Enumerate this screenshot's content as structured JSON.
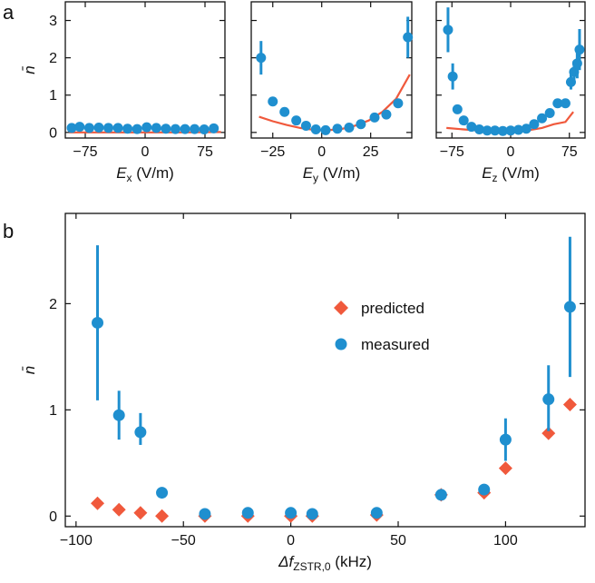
{
  "panel_letters": {
    "a": "a",
    "b": "b"
  },
  "colors": {
    "measured": "#1f8fcf",
    "predicted": "#f0593c",
    "axes": "#111111"
  },
  "chart_data": [
    {
      "id": "Ex",
      "type": "scatter",
      "xlabel_main": "E",
      "xlabel_sub": "x",
      "xlabel_unit": " (V/m)",
      "ylabel": "n̄",
      "xlim": [
        -100,
        100
      ],
      "ylim": [
        -0.15,
        3.5
      ],
      "xticks": [
        -75,
        0,
        75
      ],
      "yticks": [
        0,
        1,
        2,
        3
      ],
      "series": [
        {
          "kind": "points",
          "x": [
            -92,
            -82,
            -70,
            -58,
            -46,
            -34,
            -22,
            -10,
            2,
            14,
            26,
            38,
            50,
            62,
            74,
            86
          ],
          "y": [
            0.12,
            0.15,
            0.12,
            0.13,
            0.12,
            0.12,
            0.1,
            0.09,
            0.14,
            0.12,
            0.1,
            0.09,
            0.09,
            0.09,
            0.08,
            0.11
          ]
        },
        {
          "kind": "line",
          "x": [
            -95,
            -50,
            0,
            50,
            95
          ],
          "y": [
            0.0,
            0.0,
            0.0,
            0.0,
            0.01
          ]
        }
      ]
    },
    {
      "id": "Ey",
      "type": "scatter",
      "xlabel_main": "E",
      "xlabel_sub": "y",
      "xlabel_unit": " (V/m)",
      "ylabel": "",
      "xlim": [
        -36,
        46
      ],
      "ylim": [
        -0.15,
        3.5
      ],
      "xticks": [
        -25,
        0,
        25
      ],
      "yticks": [
        0,
        1,
        2,
        3
      ],
      "series": [
        {
          "kind": "points",
          "x": [
            -31,
            -25,
            -19,
            -13,
            -8,
            -3,
            2,
            8,
            14,
            20,
            27,
            33,
            39,
            44
          ],
          "y": [
            2.0,
            0.83,
            0.55,
            0.32,
            0.18,
            0.08,
            0.06,
            0.1,
            0.13,
            0.22,
            0.4,
            0.48,
            0.78,
            2.55
          ],
          "err": [
            0.45,
            0,
            0,
            0,
            0,
            0,
            0,
            0,
            0,
            0,
            0,
            0,
            0,
            0.55
          ]
        },
        {
          "kind": "line",
          "x": [
            -32,
            -25,
            -18,
            -11,
            -4,
            3,
            10,
            17,
            24,
            31,
            38,
            45
          ],
          "y": [
            0.42,
            0.3,
            0.2,
            0.12,
            0.07,
            0.06,
            0.09,
            0.18,
            0.32,
            0.55,
            0.9,
            1.55
          ]
        }
      ]
    },
    {
      "id": "Ez",
      "type": "scatter",
      "xlabel_main": "E",
      "xlabel_sub": "z",
      "xlabel_unit": " (V/m)",
      "ylabel": "",
      "xlim": [
        -95,
        95
      ],
      "ylim": [
        -0.15,
        3.5
      ],
      "xticks": [
        -75,
        0,
        75
      ],
      "yticks": [
        0,
        1,
        2,
        3
      ],
      "series": [
        {
          "kind": "points",
          "x": [
            -80,
            -74,
            -68,
            -60,
            -50,
            -40,
            -30,
            -20,
            -10,
            0,
            10,
            20,
            30,
            40,
            50,
            60,
            70,
            77,
            81,
            85,
            88
          ],
          "y": [
            2.75,
            1.5,
            0.62,
            0.32,
            0.15,
            0.08,
            0.05,
            0.05,
            0.04,
            0.05,
            0.07,
            0.1,
            0.22,
            0.38,
            0.52,
            0.78,
            0.78,
            1.35,
            1.62,
            1.85,
            2.22
          ],
          "err": [
            0.6,
            0.35,
            0,
            0,
            0,
            0,
            0,
            0,
            0,
            0,
            0,
            0,
            0,
            0,
            0,
            0,
            0,
            0.2,
            0.3,
            0.4,
            0.55
          ]
        },
        {
          "kind": "line",
          "x": [
            -82,
            -60,
            -40,
            -20,
            0,
            20,
            40,
            55,
            70,
            80
          ],
          "y": [
            0.12,
            0.08,
            0.05,
            0.03,
            0.03,
            0.05,
            0.12,
            0.22,
            0.28,
            0.55
          ]
        }
      ]
    },
    {
      "id": "b",
      "type": "scatter",
      "xlabel_main": "Δf",
      "xlabel_sub": "ZSTR,0",
      "xlabel_unit": " (kHz)",
      "ylabel": "n̄",
      "xlim": [
        -105,
        137
      ],
      "ylim": [
        -0.1,
        2.85
      ],
      "xticks": [
        -100,
        -50,
        0,
        50,
        100
      ],
      "yticks": [
        0,
        1,
        2
      ],
      "legend": [
        {
          "name": "predicted",
          "marker": "diamond"
        },
        {
          "name": "measured",
          "marker": "circle"
        }
      ],
      "series": [
        {
          "kind": "diamonds",
          "name": "predicted",
          "x": [
            -90,
            -80,
            -70,
            -60,
            -40,
            -20,
            0,
            10,
            40,
            70,
            90,
            100,
            120,
            130
          ],
          "y": [
            0.12,
            0.06,
            0.03,
            0.0,
            0.0,
            0.0,
            0.0,
            0.0,
            0.01,
            0.2,
            0.22,
            0.45,
            0.78,
            1.05
          ]
        },
        {
          "kind": "points",
          "name": "measured",
          "x": [
            -90,
            -80,
            -70,
            -60,
            -40,
            -20,
            0,
            10,
            40,
            70,
            90,
            100,
            120,
            130
          ],
          "y": [
            1.82,
            0.95,
            0.79,
            0.22,
            0.02,
            0.03,
            0.03,
            0.02,
            0.03,
            0.2,
            0.25,
            0.72,
            1.1,
            1.97
          ],
          "err_up": [
            0.73,
            0.23,
            0.18,
            0.0,
            0,
            0,
            0,
            0,
            0,
            0,
            0.05,
            0.2,
            0.32,
            0.66
          ],
          "err_dn": [
            0.73,
            0.23,
            0.12,
            0.0,
            0,
            0,
            0,
            0,
            0,
            0,
            0.05,
            0.2,
            0.3,
            0.66
          ]
        }
      ]
    }
  ]
}
